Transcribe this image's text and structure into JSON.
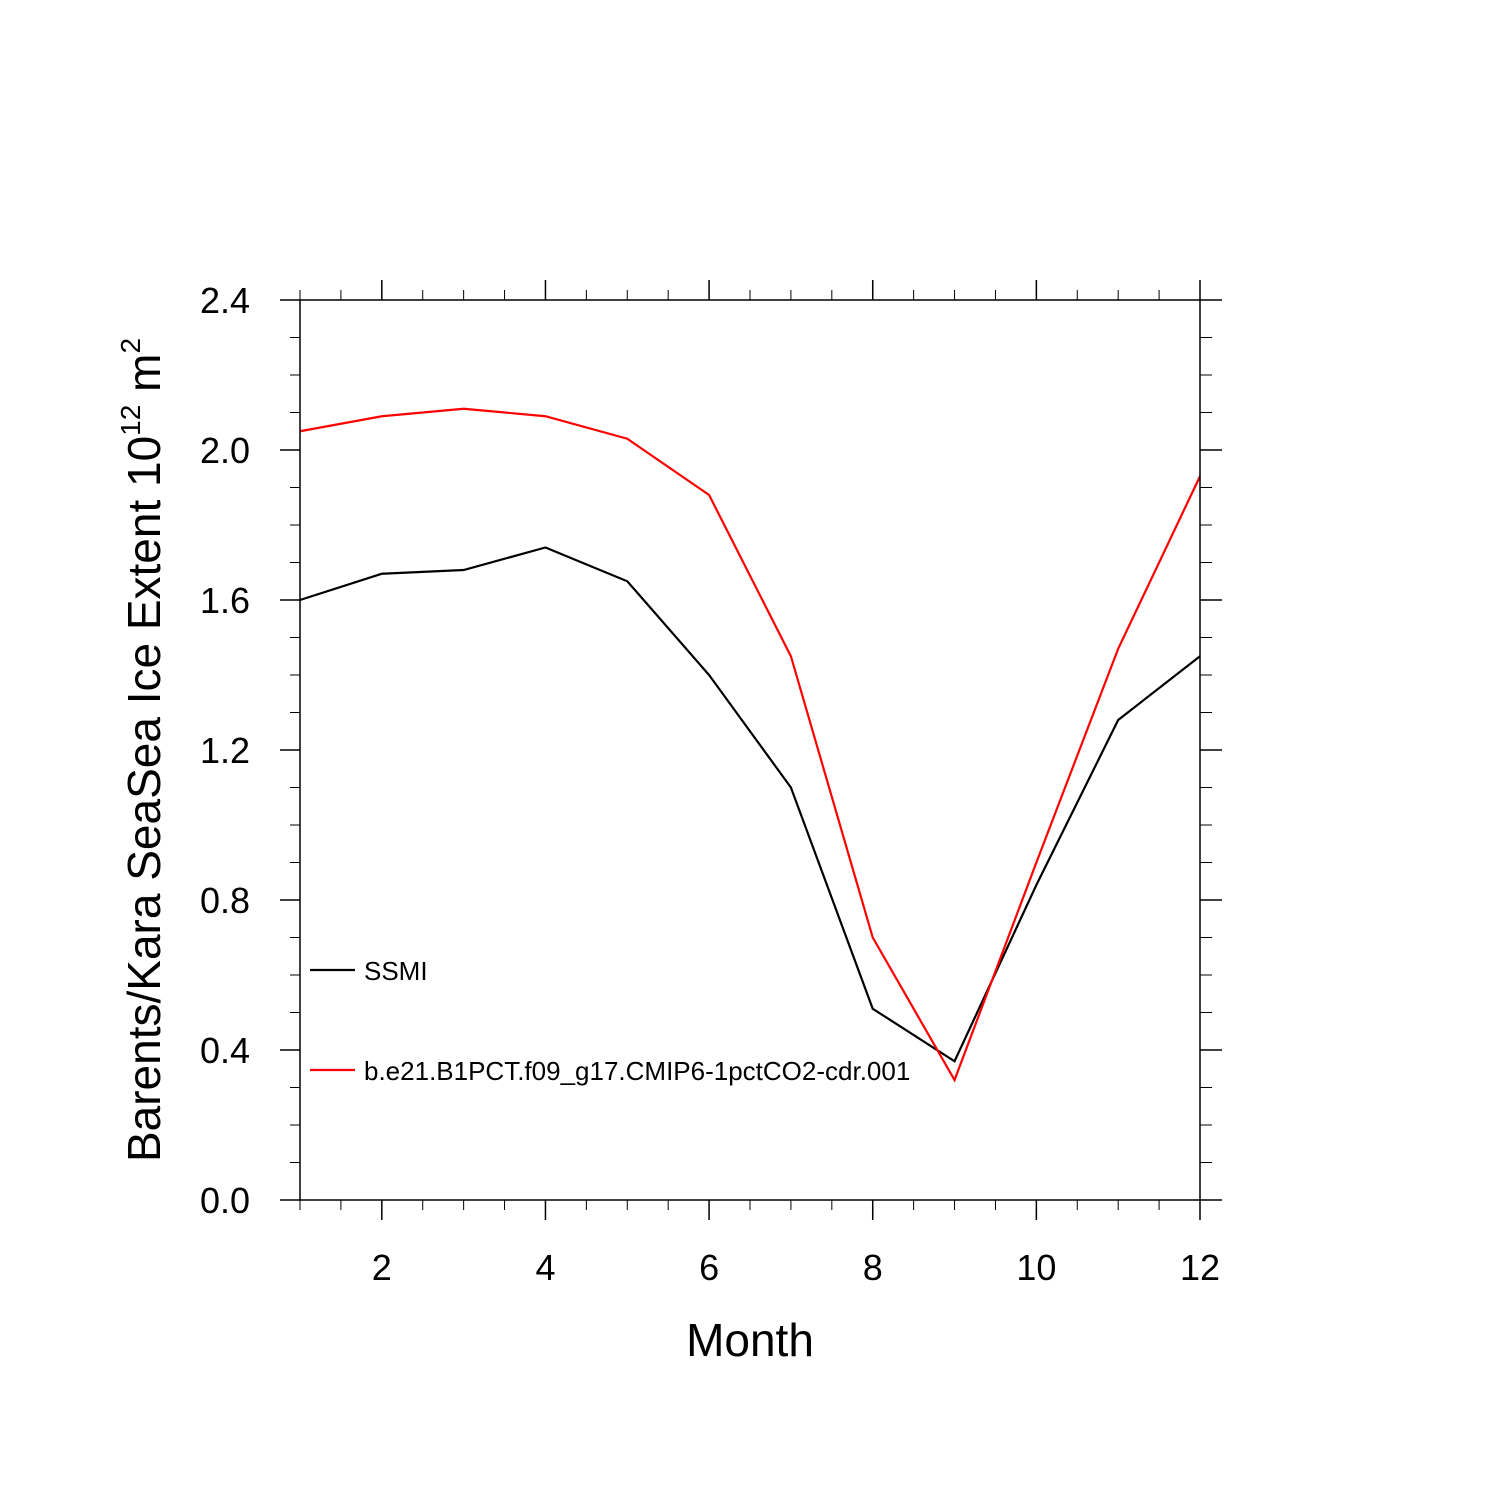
{
  "chart_data": {
    "type": "line",
    "title": "",
    "xlabel": "Month",
    "ylabel_main": "Barents/Kara SeaSea Ice Extent 10",
    "ylabel_sup": "12",
    "ylabel_unit": " m",
    "ylabel_unit_sup": "2",
    "xlim": [
      1,
      12
    ],
    "ylim": [
      0.0,
      2.4
    ],
    "x_ticks": [
      2,
      4,
      6,
      8,
      10,
      12
    ],
    "y_ticks": [
      0.0,
      0.4,
      0.8,
      1.2,
      1.6,
      2.0,
      2.4
    ],
    "x_tick_labels": [
      "2",
      "4",
      "6",
      "8",
      "10",
      "12"
    ],
    "y_tick_labels": [
      "0.0",
      "0.4",
      "0.8",
      "1.2",
      "1.6",
      "2.0",
      "2.4"
    ],
    "grid": false,
    "legend_position": "inside-left",
    "x": [
      1,
      2,
      3,
      4,
      5,
      6,
      7,
      8,
      9,
      10,
      11,
      12
    ],
    "series": [
      {
        "name": "SSMI",
        "color": "#000000",
        "values": [
          1.6,
          1.67,
          1.68,
          1.74,
          1.65,
          1.4,
          1.1,
          0.51,
          0.37,
          0.84,
          1.28,
          1.45
        ]
      },
      {
        "name": "b.e21.B1PCT.f09_g17.CMIP6-1pctCO2-cdr.001",
        "color": "#ff0000",
        "values": [
          2.05,
          2.09,
          2.11,
          2.09,
          2.03,
          1.88,
          1.45,
          0.7,
          0.32,
          0.9,
          1.47,
          1.93
        ]
      }
    ]
  }
}
